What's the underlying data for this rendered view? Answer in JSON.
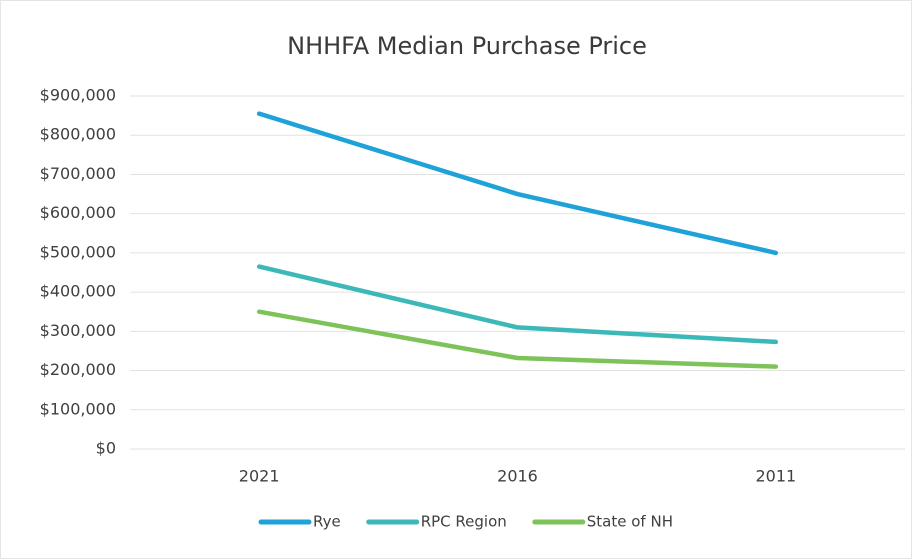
{
  "chart_data": {
    "type": "line",
    "title": "NHHFA Median Purchase Price",
    "categories": [
      "2021",
      "2016",
      "2011"
    ],
    "series": [
      {
        "name": "Rye",
        "color": "#1ea2d8",
        "values": [
          855000,
          650000,
          500000
        ]
      },
      {
        "name": "RPC Region",
        "color": "#3cb8b8",
        "values": [
          465000,
          310000,
          273000
        ]
      },
      {
        "name": "State of NH",
        "color": "#7dc35a",
        "values": [
          350000,
          232000,
          210000
        ]
      }
    ],
    "ylim": [
      0,
      900000
    ],
    "yticks": [
      {
        "value": 0,
        "label": "$0"
      },
      {
        "value": 100000,
        "label": "$100,000"
      },
      {
        "value": 200000,
        "label": "$200,000"
      },
      {
        "value": 300000,
        "label": "$300,000"
      },
      {
        "value": 400000,
        "label": "$400,000"
      },
      {
        "value": 500000,
        "label": "$500,000"
      },
      {
        "value": 600000,
        "label": "$600,000"
      },
      {
        "value": 700000,
        "label": "$700,000"
      },
      {
        "value": 800000,
        "label": "$800,000"
      },
      {
        "value": 900000,
        "label": "$900,000"
      }
    ],
    "grid": true,
    "legend": "bottom"
  }
}
